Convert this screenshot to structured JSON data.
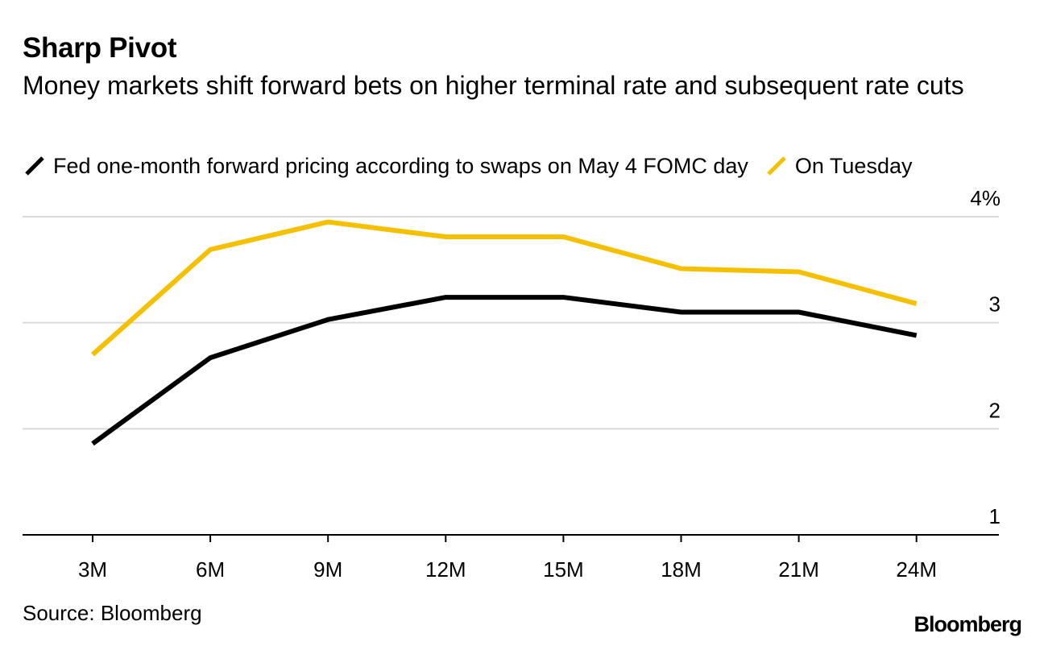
{
  "chart_data": {
    "type": "line",
    "title": "Sharp Pivot",
    "subtitle": "Money markets shift forward bets on higher terminal rate and subsequent rate cuts",
    "categories": [
      "3M",
      "6M",
      "9M",
      "12M",
      "15M",
      "18M",
      "21M",
      "24M"
    ],
    "series": [
      {
        "name": "Fed one-month forward pricing according to swaps on May 4 FOMC day",
        "color": "#000000",
        "values": [
          1.86,
          2.67,
          3.03,
          3.24,
          3.24,
          3.1,
          3.1,
          2.88
        ]
      },
      {
        "name": "On Tuesday",
        "color": "#F5C000",
        "values": [
          2.7,
          3.69,
          3.95,
          3.81,
          3.81,
          3.51,
          3.48,
          3.18
        ]
      }
    ],
    "ylim": [
      1,
      4
    ],
    "yticks": [
      {
        "value": 4,
        "label": "4%"
      },
      {
        "value": 3,
        "label": "3"
      },
      {
        "value": 2,
        "label": "2"
      },
      {
        "value": 1,
        "label": "1"
      }
    ],
    "xlabel": "",
    "ylabel": "",
    "grid": true,
    "y_axis_side": "right"
  },
  "footer": {
    "source": "Source: Bloomberg",
    "brand": "Bloomberg"
  },
  "colors": {
    "grid": "#d9d9d9",
    "axis": "#000000"
  }
}
